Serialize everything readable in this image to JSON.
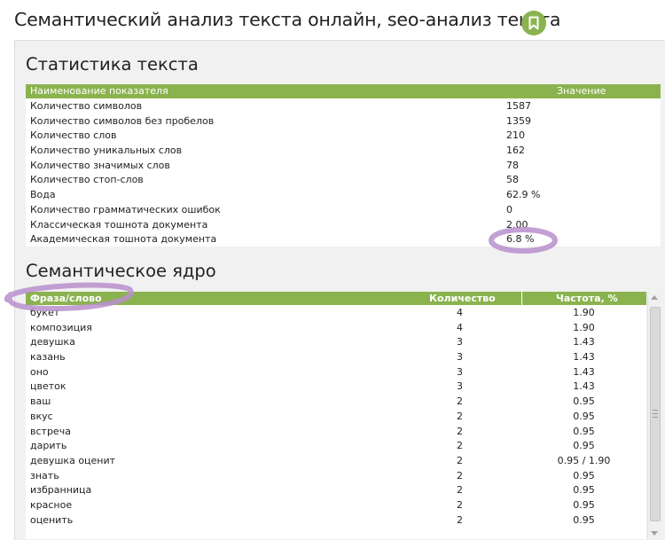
{
  "page": {
    "title": "Семантический анализ текста онлайн, seo-анализ текста"
  },
  "icons": {
    "bookmark": "bookmark-icon"
  },
  "colors": {
    "accent": "#8ab34f",
    "annotation": "#b98fcd"
  },
  "stats": {
    "heading": "Статистика текста",
    "columns": {
      "name": "Наименование показателя",
      "value": "Значение"
    },
    "rows": [
      {
        "label": "Количество символов",
        "value": "1587"
      },
      {
        "label": "Количество символов без пробелов",
        "value": "1359"
      },
      {
        "label": "Количество слов",
        "value": "210"
      },
      {
        "label": "Количество уникальных слов",
        "value": "162"
      },
      {
        "label": "Количество значимых слов",
        "value": "78"
      },
      {
        "label": "Количество стоп-слов",
        "value": "58"
      },
      {
        "label": "Вода",
        "value": "62.9 %"
      },
      {
        "label": "Количество грамматических ошибок",
        "value": "0"
      },
      {
        "label": "Классическая тошнота документа",
        "value": "2.00"
      },
      {
        "label": "Академическая тошнота документа",
        "value": "6.8 %"
      }
    ]
  },
  "semantic": {
    "heading": "Семантическое ядро",
    "columns": {
      "phrase": "Фраза/слово",
      "count": "Количество",
      "freq": "Частота, %"
    },
    "rows": [
      {
        "phrase": "букет",
        "count": "4",
        "freq": "1.90"
      },
      {
        "phrase": "композиция",
        "count": "4",
        "freq": "1.90"
      },
      {
        "phrase": "девушка",
        "count": "3",
        "freq": "1.43"
      },
      {
        "phrase": "казань",
        "count": "3",
        "freq": "1.43"
      },
      {
        "phrase": "оно",
        "count": "3",
        "freq": "1.43"
      },
      {
        "phrase": "цветок",
        "count": "3",
        "freq": "1.43"
      },
      {
        "phrase": "ваш",
        "count": "2",
        "freq": "0.95"
      },
      {
        "phrase": "вкус",
        "count": "2",
        "freq": "0.95"
      },
      {
        "phrase": "встреча",
        "count": "2",
        "freq": "0.95"
      },
      {
        "phrase": "дарить",
        "count": "2",
        "freq": "0.95"
      },
      {
        "phrase": "девушка оценит",
        "count": "2",
        "freq": "0.95 / 1.90"
      },
      {
        "phrase": "знать",
        "count": "2",
        "freq": "0.95"
      },
      {
        "phrase": "избранница",
        "count": "2",
        "freq": "0.95"
      },
      {
        "phrase": "красное",
        "count": "2",
        "freq": "0.95"
      },
      {
        "phrase": "оценить",
        "count": "2",
        "freq": "0.95"
      }
    ]
  }
}
